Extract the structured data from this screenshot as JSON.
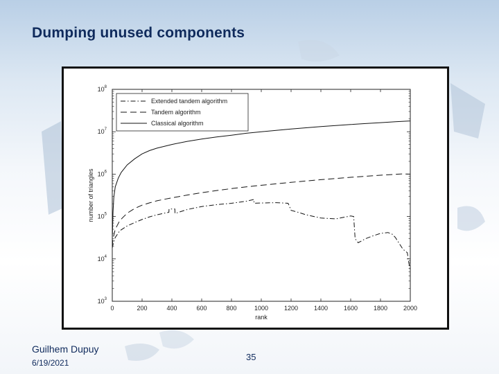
{
  "slide": {
    "title": "Dumping unused components",
    "author": "Guilhem Dupuy",
    "date": "6/19/2021",
    "page": "35"
  },
  "chart_data": {
    "type": "line",
    "title": "",
    "xlabel": "rank",
    "ylabel": "number of triangles",
    "xlim": [
      0,
      2000
    ],
    "ylim": [
      1000,
      100000000
    ],
    "yscale": "log",
    "grid": false,
    "legend_position": "top-left",
    "xticks": [
      0,
      200,
      400,
      600,
      800,
      1000,
      1200,
      1400,
      1600,
      1800,
      2000
    ],
    "yticks": [
      {
        "value": 1000,
        "base": "10",
        "exp": "3"
      },
      {
        "value": 10000,
        "base": "10",
        "exp": "4"
      },
      {
        "value": 100000,
        "base": "10",
        "exp": "5"
      },
      {
        "value": 1000000,
        "base": "10",
        "exp": "6"
      },
      {
        "value": 10000000,
        "base": "10",
        "exp": "7"
      },
      {
        "value": 100000000,
        "base": "10",
        "exp": "8"
      }
    ],
    "series": [
      {
        "name": "Extended tandem algorithm",
        "dash": "7,3,1.5,3",
        "x": [
          0,
          5,
          20,
          50,
          100,
          150,
          200,
          250,
          300,
          350,
          380,
          381,
          420,
          421,
          500,
          600,
          700,
          800,
          900,
          950,
          951,
          1000,
          1100,
          1180,
          1190,
          1200,
          1250,
          1300,
          1400,
          1500,
          1600,
          1620,
          1630,
          1650,
          1700,
          1750,
          1800,
          1850,
          1880,
          1900,
          1950,
          1980,
          1990,
          2000
        ],
        "values": [
          18000,
          22000,
          32000,
          46000,
          60000,
          72000,
          85000,
          98000,
          110000,
          120000,
          126000,
          150000,
          150000,
          118000,
          145000,
          172000,
          190000,
          205000,
          230000,
          252000,
          205000,
          208000,
          212000,
          205000,
          170000,
          140000,
          125000,
          110000,
          92000,
          88000,
          103000,
          100000,
          30000,
          24000,
          30000,
          35000,
          40000,
          42000,
          38000,
          32000,
          17000,
          14000,
          8000,
          5500
        ]
      },
      {
        "name": "Tandem algorithm",
        "dash": "9,5",
        "x": [
          0,
          5,
          20,
          50,
          100,
          150,
          200,
          250,
          300,
          350,
          400,
          500,
          600,
          700,
          800,
          900,
          1000,
          1100,
          1200,
          1300,
          1400,
          1500,
          1600,
          1700,
          1800,
          1900,
          1950,
          2000
        ],
        "values": [
          20000,
          30000,
          50000,
          80000,
          120000,
          155000,
          185000,
          210000,
          235000,
          255000,
          275000,
          320000,
          365000,
          410000,
          455000,
          500000,
          545000,
          590000,
          640000,
          690000,
          740000,
          790000,
          840000,
          890000,
          940000,
          990000,
          1010000,
          1000000
        ]
      },
      {
        "name": "Classical algorithm",
        "dash": "",
        "x": [
          0,
          5,
          10,
          20,
          40,
          60,
          100,
          150,
          200,
          250,
          300,
          400,
          500,
          600,
          700,
          800,
          900,
          1000,
          1100,
          1200,
          1300,
          1400,
          1500,
          1600,
          1700,
          1800,
          1900,
          2000
        ],
        "values": [
          28000,
          130000,
          280000,
          500000,
          800000,
          1100000,
          1650000,
          2300000,
          3000000,
          3600000,
          4100000,
          5000000,
          5900000,
          6700000,
          7500000,
          8300000,
          9200000,
          10000000,
          10800000,
          11600000,
          12400000,
          13200000,
          14000000,
          14800000,
          15600000,
          16400000,
          17200000,
          18000000
        ]
      }
    ]
  }
}
